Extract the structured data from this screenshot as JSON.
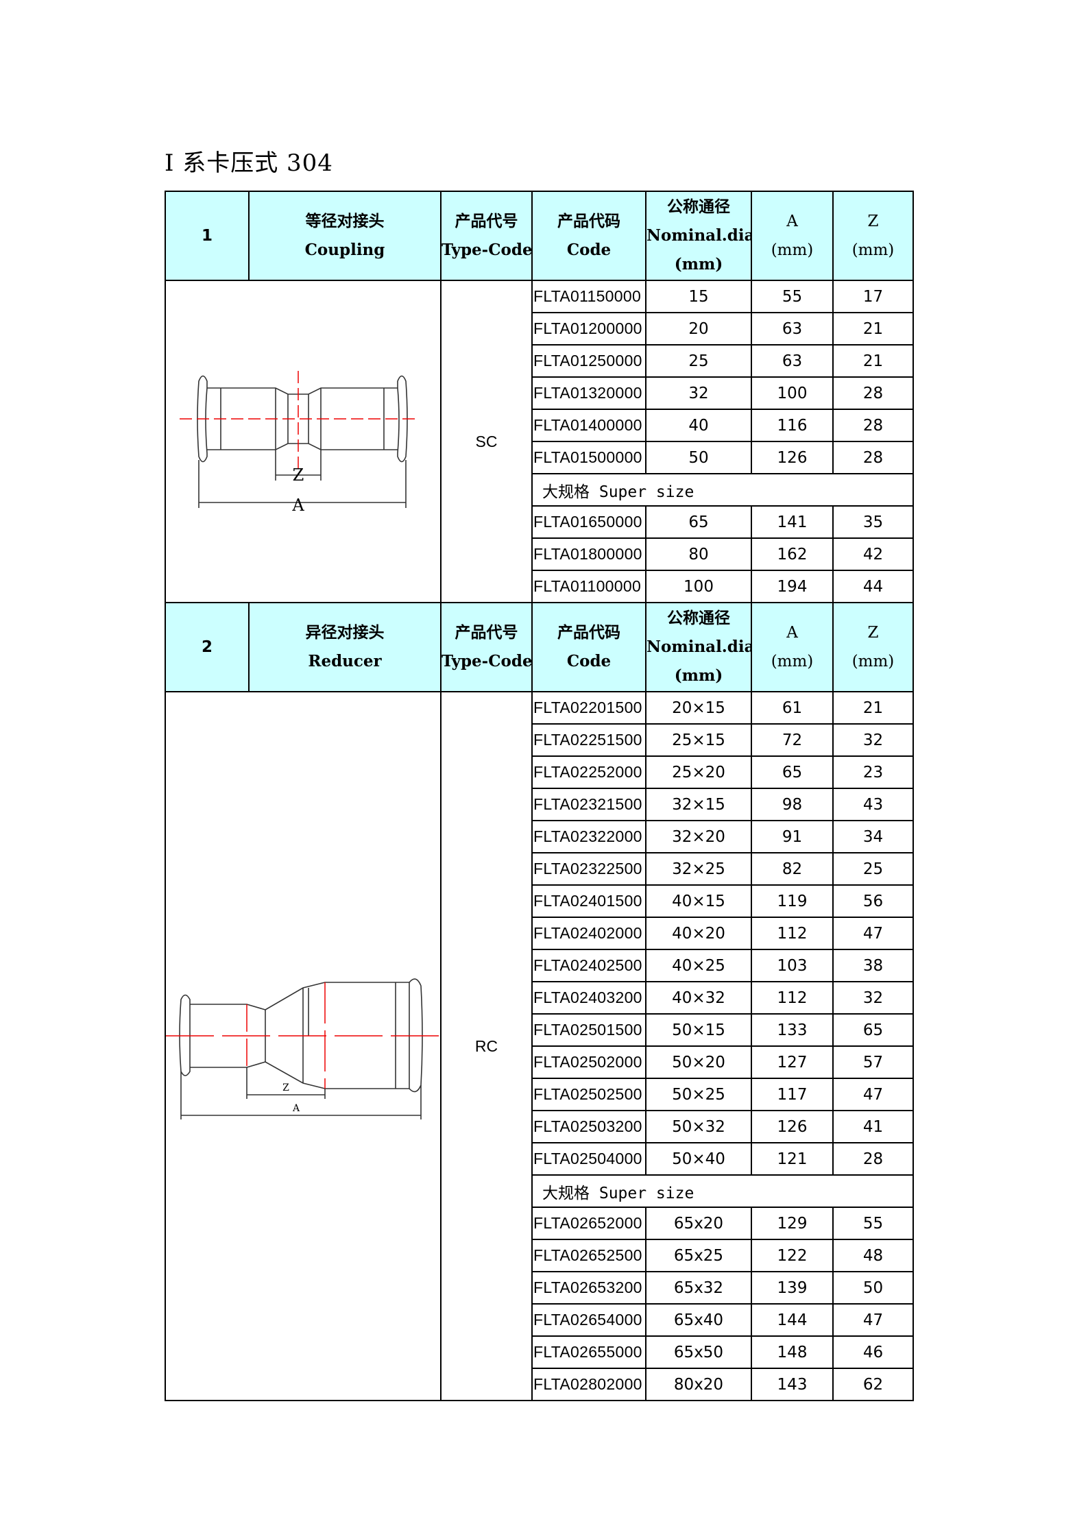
{
  "title": "I  系卡压式 304",
  "sections": [
    {
      "number": "1",
      "name_cn": "等径对接头",
      "name_en": "Coupling",
      "type_code_header_cn": "产品代号",
      "type_code_header_en": "Type-Code",
      "code_header_cn": "产品代码",
      "code_header_en": "Code",
      "nominal_header_cn": "公称通径",
      "nominal_header_en": "Nominal.dia",
      "nominal_header_unit": "(mm)",
      "a_header": "A",
      "a_unit": "(mm)",
      "z_header": "Z",
      "z_unit": "(mm)",
      "type_code": "SC",
      "drawing_icon": "coupling-drawing",
      "drawing_labels": {
        "z": "Z",
        "a": "A"
      },
      "rows": [
        {
          "code": "FLTA01150000",
          "dn": "15",
          "a": "55",
          "z": "17"
        },
        {
          "code": "FLTA01200000",
          "dn": "20",
          "a": "63",
          "z": "21"
        },
        {
          "code": "FLTA01250000",
          "dn": "25",
          "a": "63",
          "z": "21"
        },
        {
          "code": "FLTA01320000",
          "dn": "32",
          "a": "100",
          "z": "28"
        },
        {
          "code": "FLTA01400000",
          "dn": "40",
          "a": "116",
          "z": "28"
        },
        {
          "code": "FLTA01500000",
          "dn": "50",
          "a": "126",
          "z": "28"
        },
        {
          "super": "大规格 Super size"
        },
        {
          "code": "FLTA01650000",
          "dn": "65",
          "a": "141",
          "z": "35"
        },
        {
          "code": "FLTA01800000",
          "dn": "80",
          "a": "162",
          "z": "42"
        },
        {
          "code": "FLTA01100000",
          "dn": "100",
          "a": "194",
          "z": "44"
        }
      ]
    },
    {
      "number": "2",
      "name_cn": "异径对接头",
      "name_en": "Reducer",
      "type_code_header_cn": "产品代号",
      "type_code_header_en": "Type-Code",
      "code_header_cn": "产品代码",
      "code_header_en": "Code",
      "nominal_header_cn": "公称通径",
      "nominal_header_en": "Nominal.dia",
      "nominal_header_unit": "(mm)",
      "a_header": "A",
      "a_unit": "(mm)",
      "z_header": "Z",
      "z_unit": "(mm)",
      "type_code": "RC",
      "drawing_icon": "reducer-drawing",
      "drawing_labels": {
        "z": "Z",
        "a": "A"
      },
      "rows": [
        {
          "code": "FLTA02201500",
          "dn": "20×15",
          "a": "61",
          "z": "21"
        },
        {
          "code": "FLTA02251500",
          "dn": "25×15",
          "a": "72",
          "z": "32"
        },
        {
          "code": "FLTA02252000",
          "dn": "25×20",
          "a": "65",
          "z": "23"
        },
        {
          "code": "FLTA02321500",
          "dn": "32×15",
          "a": "98",
          "z": "43"
        },
        {
          "code": "FLTA02322000",
          "dn": "32×20",
          "a": "91",
          "z": "34"
        },
        {
          "code": "FLTA02322500",
          "dn": "32×25",
          "a": "82",
          "z": "25"
        },
        {
          "code": "FLTA02401500",
          "dn": "40×15",
          "a": "119",
          "z": "56"
        },
        {
          "code": "FLTA02402000",
          "dn": "40×20",
          "a": "112",
          "z": "47"
        },
        {
          "code": "FLTA02402500",
          "dn": "40×25",
          "a": "103",
          "z": "38"
        },
        {
          "code": "FLTA02403200",
          "dn": "40×32",
          "a": "112",
          "z": "32"
        },
        {
          "code": "FLTA02501500",
          "dn": "50×15",
          "a": "133",
          "z": "65"
        },
        {
          "code": "FLTA02502000",
          "dn": "50×20",
          "a": "127",
          "z": "57"
        },
        {
          "code": "FLTA02502500",
          "dn": "50×25",
          "a": "117",
          "z": "47"
        },
        {
          "code": "FLTA02503200",
          "dn": "50×32",
          "a": "126",
          "z": "41"
        },
        {
          "code": "FLTA02504000",
          "dn": "50×40",
          "a": "121",
          "z": "28"
        },
        {
          "super": "大规格 Super size"
        },
        {
          "code": "FLTA02652000",
          "dn": "65x20",
          "a": "129",
          "z": "55"
        },
        {
          "code": "FLTA02652500",
          "dn": "65x25",
          "a": "122",
          "z": "48"
        },
        {
          "code": "FLTA02653200",
          "dn": "65x32",
          "a": "139",
          "z": "50"
        },
        {
          "code": "FLTA02654000",
          "dn": "65x40",
          "a": "144",
          "z": "47"
        },
        {
          "code": "FLTA02655000",
          "dn": "65x50",
          "a": "148",
          "z": "46"
        },
        {
          "code": "FLTA02802000",
          "dn": "80x20",
          "a": "143",
          "z": "62"
        }
      ]
    }
  ]
}
